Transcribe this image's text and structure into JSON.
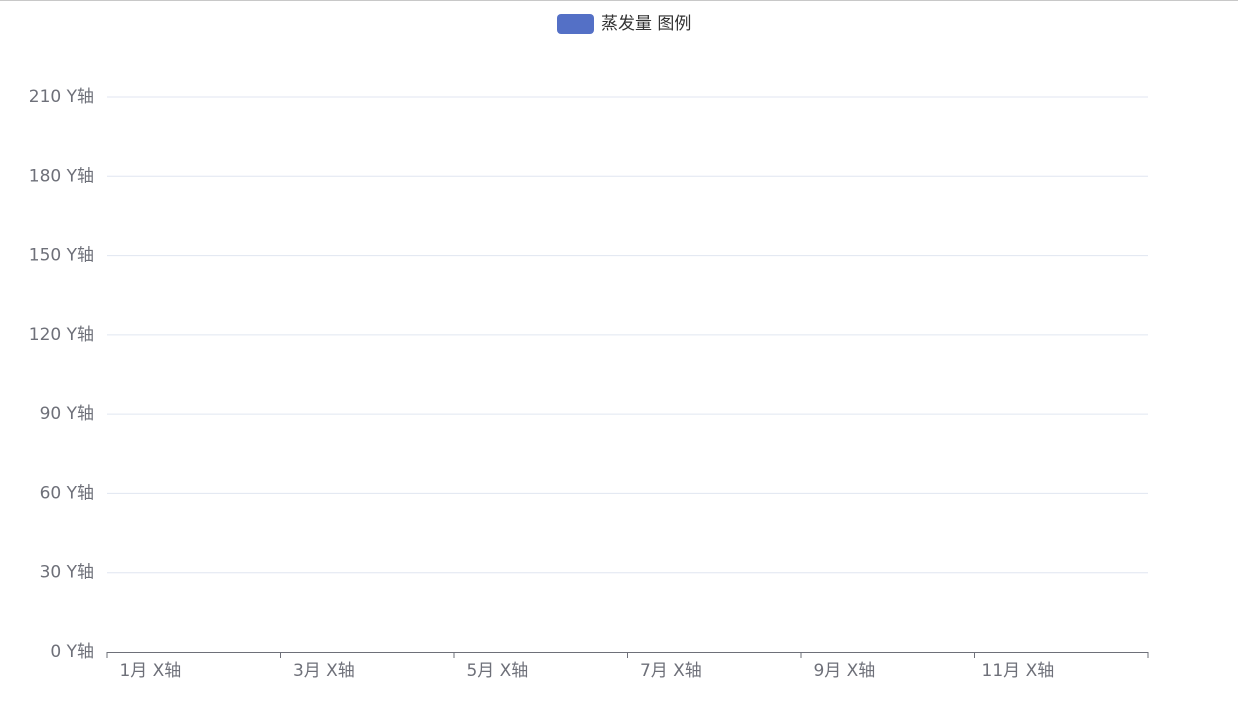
{
  "chart_data": {
    "type": "bar",
    "categories": [
      "1月 X轴",
      null,
      "3月 X轴",
      null,
      "5月 X轴",
      null,
      "7月 X轴",
      null,
      "9月 X轴",
      null,
      "11月 X轴",
      null
    ],
    "series": [
      {
        "name": "蒸发量 图例",
        "color": "#5470c6",
        "values": [
          null,
          null,
          null,
          null,
          null,
          null,
          null,
          null,
          null,
          null,
          null,
          null
        ]
      }
    ],
    "ylim": [
      0,
      210
    ],
    "yticks": [
      {
        "value": 0,
        "label": "0 Y轴"
      },
      {
        "value": 30,
        "label": "30 Y轴"
      },
      {
        "value": 60,
        "label": "60 Y轴"
      },
      {
        "value": 90,
        "label": "90 Y轴"
      },
      {
        "value": 120,
        "label": "120 Y轴"
      },
      {
        "value": 150,
        "label": "150 Y轴"
      },
      {
        "value": 180,
        "label": "180 Y轴"
      },
      {
        "value": 210,
        "label": "210 Y轴"
      }
    ],
    "grid": true,
    "legend": "top"
  }
}
